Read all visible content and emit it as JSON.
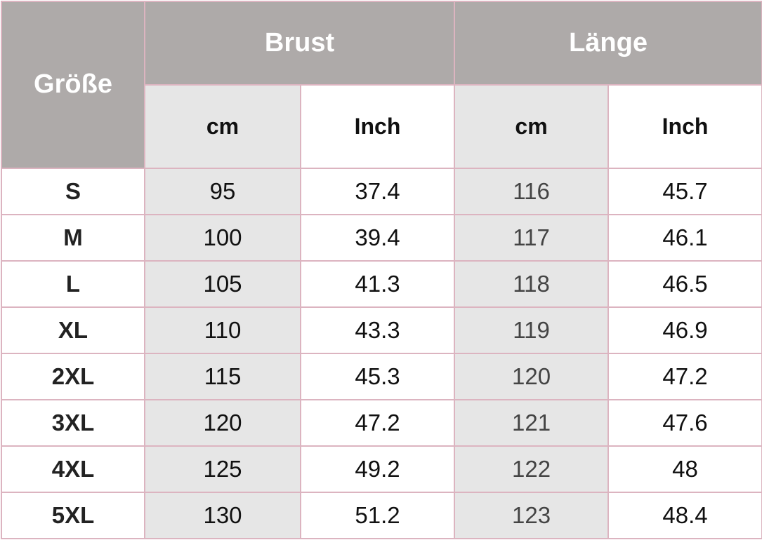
{
  "header": {
    "size_label": "Größe",
    "groups": [
      "Brust",
      "Länge"
    ],
    "units": [
      "cm",
      "Inch",
      "cm",
      "Inch"
    ]
  },
  "rows": [
    [
      "S",
      "95",
      "37.4",
      "116",
      "45.7"
    ],
    [
      "M",
      "100",
      "39.4",
      "117",
      "46.1"
    ],
    [
      "L",
      "105",
      "41.3",
      "118",
      "46.5"
    ],
    [
      "XL",
      "110",
      "43.3",
      "119",
      "46.9"
    ],
    [
      "2XL",
      "115",
      "45.3",
      "120",
      "47.2"
    ],
    [
      "3XL",
      "120",
      "47.2",
      "121",
      "47.6"
    ],
    [
      "4XL",
      "125",
      "49.2",
      "122",
      "48"
    ],
    [
      "5XL",
      "130",
      "51.2",
      "123",
      "48.4"
    ]
  ],
  "colors": {
    "header_bg": "#aeaaa9",
    "cm_column_bg": "#e6e6e6",
    "border": "#dcb4c0"
  }
}
